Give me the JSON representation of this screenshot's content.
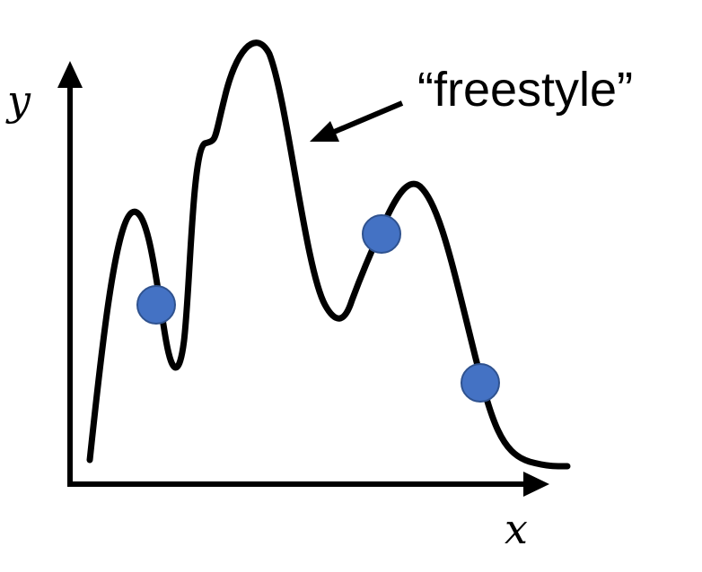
{
  "figure": {
    "x_axis_label": "x",
    "y_axis_label": "y",
    "annotation": "“freestyle”"
  },
  "colors": {
    "curve": "#000000",
    "axes": "#000000",
    "points_fill": "#4472C4",
    "points_stroke": "#2F528F",
    "background": "#ffffff"
  },
  "sample_points_count": 3
}
